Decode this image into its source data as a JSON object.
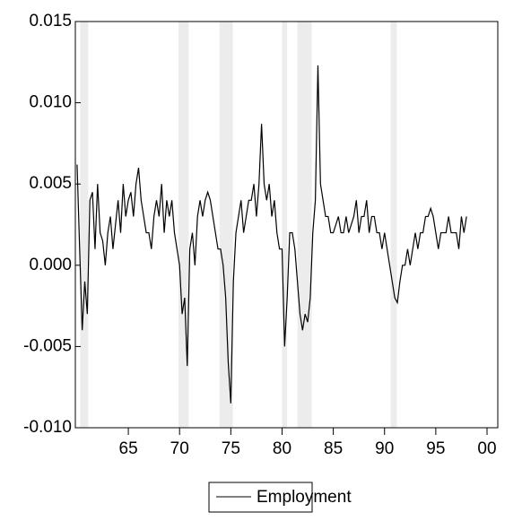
{
  "chart_data": {
    "type": "line",
    "x": [
      1960,
      1960.25,
      1960.5,
      1960.75,
      1961,
      1961.25,
      1961.5,
      1961.75,
      1962,
      1962.25,
      1962.5,
      1962.75,
      1963,
      1963.25,
      1963.5,
      1963.75,
      1964,
      1964.25,
      1964.5,
      1964.75,
      1965,
      1965.25,
      1965.5,
      1965.75,
      1966,
      1966.25,
      1966.5,
      1966.75,
      1967,
      1967.25,
      1967.5,
      1967.75,
      1968,
      1968.25,
      1968.5,
      1968.75,
      1969,
      1969.25,
      1969.5,
      1969.75,
      1970,
      1970.25,
      1970.5,
      1970.75,
      1971,
      1971.25,
      1971.5,
      1971.75,
      1972,
      1972.25,
      1972.5,
      1972.75,
      1973,
      1973.25,
      1973.5,
      1973.75,
      1974,
      1974.25,
      1974.5,
      1974.75,
      1975,
      1975.25,
      1975.5,
      1975.75,
      1976,
      1976.25,
      1976.5,
      1976.75,
      1977,
      1977.25,
      1977.5,
      1977.75,
      1978,
      1978.25,
      1978.5,
      1978.75,
      1979,
      1979.25,
      1979.5,
      1979.75,
      1980,
      1980.25,
      1980.5,
      1980.75,
      1981,
      1981.25,
      1981.5,
      1981.75,
      1982,
      1982.25,
      1982.5,
      1982.75,
      1983,
      1983.25,
      1983.5,
      1983.75,
      1984,
      1984.25,
      1984.5,
      1984.75,
      1985,
      1985.25,
      1985.5,
      1985.75,
      1986,
      1986.25,
      1986.5,
      1986.75,
      1987,
      1987.25,
      1987.5,
      1987.75,
      1988,
      1988.25,
      1988.5,
      1988.75,
      1989,
      1989.25,
      1989.5,
      1989.75,
      1990,
      1990.25,
      1990.5,
      1990.75,
      1991,
      1991.25,
      1991.5,
      1991.75,
      1992,
      1992.25,
      1992.5,
      1992.75,
      1993,
      1993.25,
      1993.5,
      1993.75,
      1994,
      1994.25,
      1994.5,
      1994.75,
      1995,
      1995.25,
      1995.5,
      1995.75,
      1996,
      1996.25,
      1996.5,
      1996.75,
      1997,
      1997.25,
      1997.5,
      1997.75,
      1998
    ],
    "series": [
      {
        "name": "Employment",
        "color": "#000000",
        "values": [
          0.0062,
          0.001,
          -0.004,
          -0.001,
          -0.003,
          0.004,
          0.0045,
          0.001,
          0.005,
          0.002,
          0.0015,
          0.0,
          0.002,
          0.003,
          0.001,
          0.0025,
          0.004,
          0.002,
          0.005,
          0.003,
          0.004,
          0.0045,
          0.003,
          0.005,
          0.006,
          0.004,
          0.003,
          0.002,
          0.002,
          0.001,
          0.003,
          0.004,
          0.003,
          0.005,
          0.002,
          0.004,
          0.003,
          0.004,
          0.002,
          0.001,
          0.0,
          -0.003,
          -0.002,
          -0.0062,
          0.001,
          0.002,
          0.0,
          0.003,
          0.004,
          0.003,
          0.004,
          0.0045,
          0.004,
          0.003,
          0.002,
          0.001,
          0.001,
          0.0,
          -0.002,
          -0.006,
          -0.0085,
          -0.001,
          0.002,
          0.003,
          0.004,
          0.002,
          0.003,
          0.004,
          0.004,
          0.005,
          0.003,
          0.005,
          0.0087,
          0.005,
          0.004,
          0.005,
          0.003,
          0.004,
          0.002,
          0.001,
          0.001,
          -0.005,
          -0.002,
          0.002,
          0.002,
          0.001,
          -0.001,
          -0.003,
          -0.004,
          -0.003,
          -0.0035,
          -0.002,
          0.002,
          0.004,
          0.0123,
          0.005,
          0.004,
          0.003,
          0.003,
          0.002,
          0.002,
          0.0025,
          0.003,
          0.002,
          0.002,
          0.003,
          0.002,
          0.0025,
          0.003,
          0.004,
          0.002,
          0.003,
          0.003,
          0.004,
          0.002,
          0.003,
          0.003,
          0.002,
          0.002,
          0.001,
          0.002,
          0.001,
          0.0,
          -0.001,
          -0.002,
          -0.0023,
          -0.001,
          0.0,
          0.0,
          0.001,
          0.0,
          0.001,
          0.002,
          0.001,
          0.002,
          0.002,
          0.003,
          0.003,
          0.0035,
          0.003,
          0.002,
          0.001,
          0.002,
          0.002,
          0.002,
          0.003,
          0.002,
          0.002,
          0.002,
          0.001,
          0.003,
          0.002,
          0.003
        ]
      }
    ],
    "recessions": [
      [
        1960.3,
        1961.1
      ],
      [
        1969.9,
        1970.9
      ],
      [
        1973.9,
        1975.2
      ],
      [
        1980.0,
        1980.5
      ],
      [
        1981.5,
        1982.9
      ],
      [
        1990.6,
        1991.2
      ]
    ],
    "xlim": [
      1959.83,
      2001.05
    ],
    "xticks": [
      {
        "value": 1965,
        "label": "65"
      },
      {
        "value": 1970,
        "label": "70"
      },
      {
        "value": 1975,
        "label": "75"
      },
      {
        "value": 1980,
        "label": "80"
      },
      {
        "value": 1985,
        "label": "85"
      },
      {
        "value": 1990,
        "label": "90"
      },
      {
        "value": 1995,
        "label": "95"
      },
      {
        "value": 2000,
        "label": "00"
      }
    ],
    "ylim": [
      -0.01,
      0.015
    ],
    "yticks": [
      {
        "value": -0.01,
        "label": "-0.010"
      },
      -0.005,
      {
        "value": 0,
        "label": "0.000"
      },
      0.005,
      {
        "value": 0.01,
        "label": "0.010"
      },
      0.015
    ],
    "recession_color": "#ececec"
  }
}
